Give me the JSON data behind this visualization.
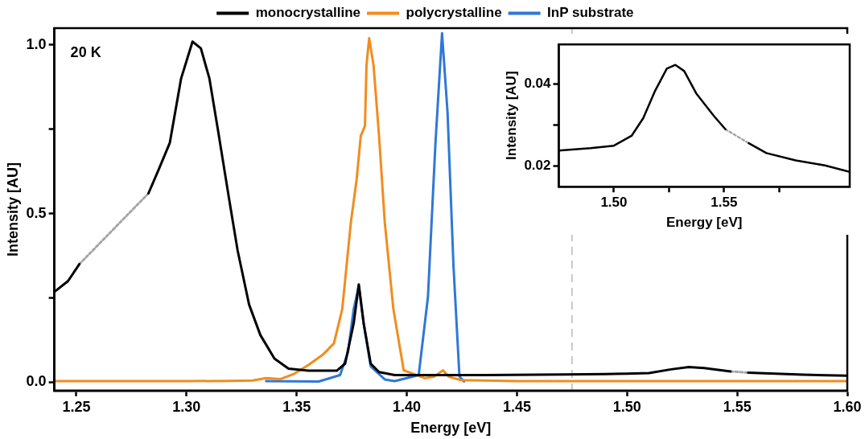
{
  "chart_data": [
    {
      "type": "line",
      "xlabel": "Energy [eV]",
      "ylabel": "Intensity [AU]",
      "legend": "top",
      "grid": false,
      "xlim": [
        1.24,
        1.6
      ],
      "xticks": [
        1.25,
        {
          "value": 1.3,
          "label": "1.30"
        },
        1.35,
        {
          "value": 1.4,
          "label": "1.40"
        },
        1.45,
        {
          "value": 1.5,
          "label": "1.50"
        },
        1.55,
        {
          "value": 1.6,
          "label": "1.60"
        }
      ],
      "ylim": [
        -0.025,
        1.05
      ],
      "yticks": [
        {
          "value": 0,
          "label": "0.0"
        },
        {
          "value": 0.25,
          "label": null
        },
        {
          "value": 0.5,
          "label": "0.5"
        },
        {
          "value": 0.75,
          "label": null
        },
        {
          "value": 1,
          "label": "1.0"
        }
      ],
      "annotations": [
        "20 K"
      ],
      "ref_lines": [
        {
          "axis": "x",
          "value": 1.475,
          "color": "#c8c8c8",
          "line_style": "dashed"
        }
      ],
      "series": [
        {
          "name": "monocrystalline",
          "color": "#000000",
          "x": [
            1.2404,
            1.2462,
            1.2513,
            1.267,
            1.2827,
            1.2873,
            1.2924,
            1.2975,
            1.3027,
            1.3065,
            1.3104,
            1.3142,
            1.3194,
            1.3232,
            1.3284,
            1.3335,
            1.3399,
            1.3463,
            1.3553,
            1.3682,
            1.372,
            1.3759,
            1.3782,
            1.3804,
            1.3836,
            1.3874,
            1.3945,
            1.4355,
            1.4711,
            1.49,
            1.5,
            1.51,
            1.52,
            1.528,
            1.535,
            1.547,
            1.551,
            1.555,
            1.58,
            1.6
          ],
          "values": [
            0.27,
            0.3,
            0.35,
            null,
            0.56,
            0.63,
            0.71,
            0.9,
            1.01,
            0.99,
            0.9,
            0.75,
            0.54,
            0.39,
            0.23,
            0.14,
            0.07,
            0.04,
            0.034,
            0.034,
            0.055,
            0.175,
            0.29,
            0.175,
            0.055,
            0.03,
            0.021,
            0.021,
            0.023,
            0.024,
            0.025,
            0.027,
            0.038,
            0.045,
            0.042,
            0.032,
            null,
            0.028,
            0.022,
            0.019
          ]
        },
        {
          "name": "polycrystalline",
          "color": "#f28c1e",
          "x": [
            1.2404,
            1.26,
            1.28,
            1.3,
            1.32,
            1.33,
            1.3361,
            1.3425,
            1.3489,
            1.3553,
            1.3618,
            1.3669,
            1.3707,
            1.3746,
            1.3772,
            1.3791,
            1.381,
            1.3817,
            1.3829,
            1.3849,
            1.3874,
            1.39,
            1.3939,
            1.3986,
            1.4082,
            1.4123,
            1.4164,
            1.4191,
            1.4246,
            1.45,
            1.5,
            1.55,
            1.6
          ],
          "values": [
            0.003,
            0.003,
            0.003,
            0.003,
            0.004,
            0.005,
            0.012,
            0.009,
            0.025,
            0.051,
            0.081,
            0.115,
            0.217,
            0.474,
            0.6,
            0.73,
            0.76,
            0.94,
            1.02,
            0.94,
            0.73,
            0.474,
            0.217,
            0.035,
            0.012,
            0.016,
            0.035,
            0.016,
            0.006,
            0.003,
            0.003,
            0.003,
            0.003
          ]
        },
        {
          "name": "InP substrate",
          "color": "#2f78d6",
          "x": [
            1.3361,
            1.36,
            1.3697,
            1.3733,
            1.3759,
            1.3782,
            1.3804,
            1.3836,
            1.39,
            1.3945,
            1.4054,
            1.4096,
            1.413,
            1.416,
            1.4185,
            1.4212,
            1.4239,
            1.426
          ],
          "values": [
            0.003,
            0.002,
            0.021,
            0.089,
            0.217,
            0.285,
            0.175,
            0.047,
            0.008,
            0.003,
            0.021,
            0.253,
            0.708,
            1.035,
            0.8,
            0.344,
            0.017,
            0.002
          ]
        },
        {
          "color": "#a6a6a6",
          "line_style": "dotted",
          "x": [
            1.2513,
            1.2827
          ],
          "values": [
            0.35,
            0.56
          ]
        },
        {
          "color": "#a6a6a6",
          "line_style": "dotted",
          "x": [
            1.547,
            1.555
          ],
          "values": [
            0.032,
            0.028
          ]
        }
      ]
    },
    {
      "type": "line",
      "xlabel": "Energy [eV]",
      "ylabel": "Intensity [AU]",
      "grid": false,
      "xlim": [
        1.475,
        1.607
      ],
      "xticks": [
        {
          "value": 1.5,
          "label": "1.50"
        },
        {
          "value": 1.525,
          "label": null
        },
        1.55,
        {
          "value": 1.575,
          "label": null
        }
      ],
      "ylim": [
        0.015,
        0.0497
      ],
      "yticks": [
        0.02,
        {
          "value": 0.03,
          "label": null
        },
        0.04
      ],
      "series": [
        {
          "color": "#000000",
          "x": [
            1.475,
            1.4894,
            1.5,
            1.508,
            1.5133,
            1.5187,
            1.524,
            1.5279,
            1.5319,
            1.5373,
            1.5453,
            1.5506,
            1.556,
            1.5612,
            1.5692,
            1.5825,
            1.5958,
            1.607
          ],
          "values": [
            0.0238,
            0.0244,
            0.025,
            0.0274,
            0.0317,
            0.0384,
            0.0438,
            0.0447,
            0.0432,
            0.0378,
            0.0323,
            0.029,
            null,
            0.0256,
            0.0232,
            0.0214,
            0.0202,
            0.0186
          ]
        },
        {
          "color": "#a6a6a6",
          "line_style": "dotted",
          "x": [
            1.5506,
            1.5612
          ],
          "values": [
            0.029,
            0.0256
          ]
        }
      ]
    }
  ]
}
